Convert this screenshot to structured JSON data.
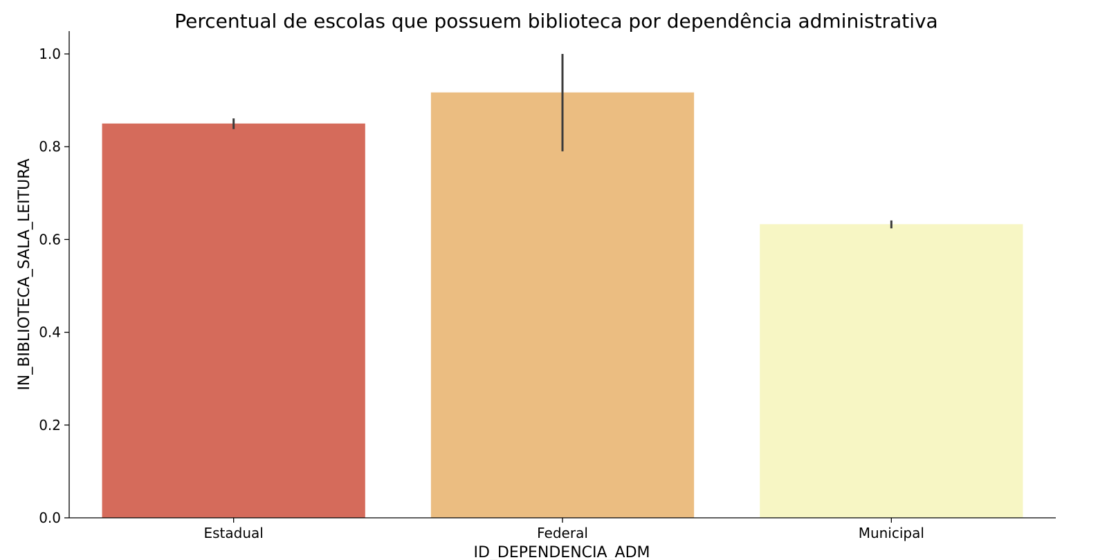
{
  "chart_data": {
    "type": "bar",
    "title": "Percentual de escolas que possuem biblioteca por dependência administrativa",
    "xlabel": "ID_DEPENDENCIA_ADM",
    "ylabel": "IN_BIBLIOTECA_SALA_LEITURA",
    "categories": [
      "Estadual",
      "Federal",
      "Municipal"
    ],
    "values": [
      0.85,
      0.917,
      0.633
    ],
    "error_low": [
      0.838,
      0.79,
      0.624
    ],
    "error_high": [
      0.861,
      1.0,
      0.641
    ],
    "colors": [
      "#d56b5b",
      "#ebbd81",
      "#f7f6c4"
    ],
    "error_color": "#3b3b3b",
    "ylim": [
      0,
      1.05
    ],
    "yticks": [
      0.0,
      0.2,
      0.4,
      0.6,
      0.8,
      1.0
    ],
    "ytick_labels": [
      "0.0",
      "0.2",
      "0.4",
      "0.6",
      "0.8",
      "1.0"
    ],
    "grid": false,
    "legend": "none"
  }
}
